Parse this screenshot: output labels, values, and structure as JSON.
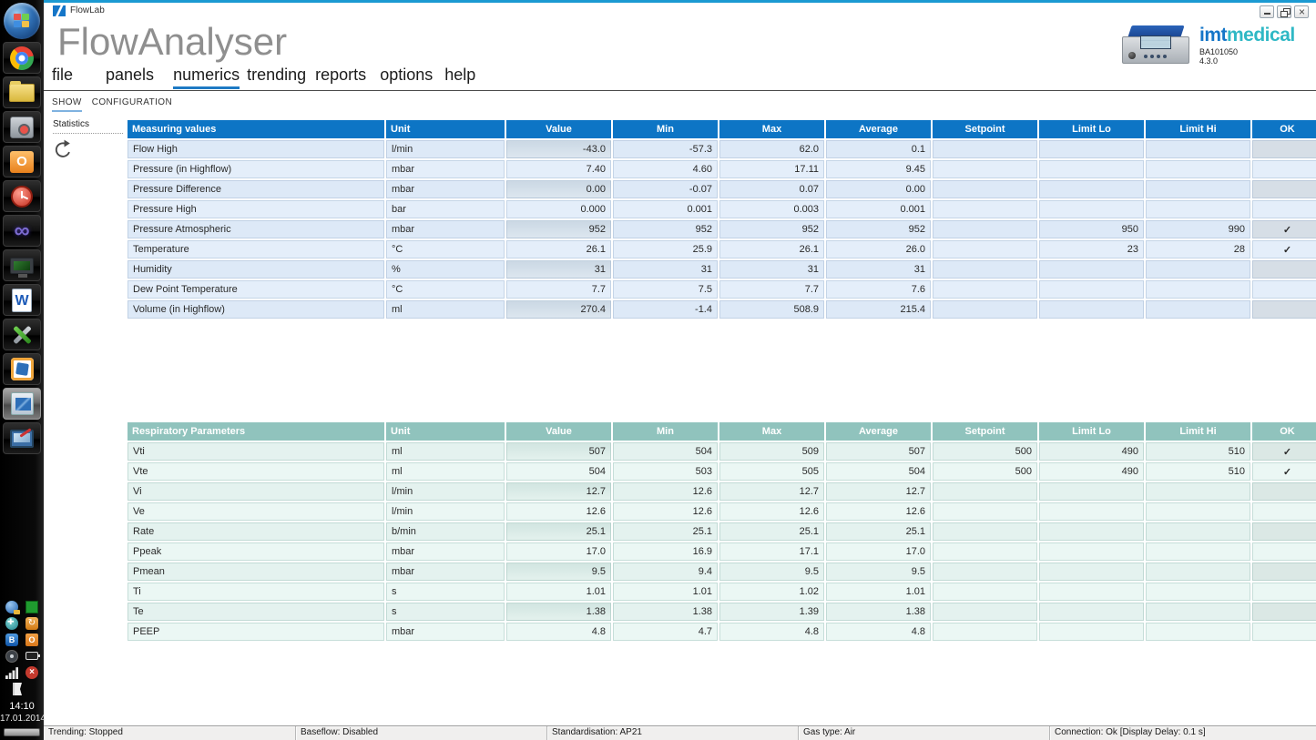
{
  "window": {
    "title": "FlowLab",
    "controls": {
      "minimize": "minimize",
      "restore": "restore",
      "close": "close"
    }
  },
  "header": {
    "app_title": "FlowAnalyser",
    "brand": {
      "imt": "imt",
      "medical": "medical",
      "model": "BA101050",
      "version": "4.3.0"
    }
  },
  "menu": {
    "active": "numerics",
    "items": [
      {
        "label": "file"
      },
      {
        "label": "panels"
      },
      {
        "label": "numerics"
      },
      {
        "label": "trending"
      },
      {
        "label": "reports"
      },
      {
        "label": "options"
      },
      {
        "label": "help"
      }
    ]
  },
  "subtabs": {
    "active": "SHOW",
    "items": [
      {
        "label": "SHOW"
      },
      {
        "label": "CONFIGURATION"
      }
    ]
  },
  "side_panel": {
    "label": "Statistics",
    "icon": "refresh-icon"
  },
  "colors": {
    "table1_header": "#0d75c5",
    "table2_header": "#90c3bd",
    "menu_underline": "#1e7ac4",
    "tab_underline": "#7fb2e0",
    "brand_imt": "#1576c8",
    "brand_medical": "#2fb8c5",
    "top_edge": "#1b9ad2"
  },
  "tables": [
    {
      "title": "Measuring values",
      "columns": [
        "Unit",
        "Value",
        "Min",
        "Max",
        "Average",
        "Setpoint",
        "Limit Lo",
        "Limit Hi",
        "OK"
      ],
      "rows": [
        [
          "Flow High",
          "l/min",
          "-43.0",
          "-57.3",
          "62.0",
          "0.1",
          "",
          "",
          "",
          ""
        ],
        [
          "Pressure (in Highflow)",
          "mbar",
          "7.40",
          "4.60",
          "17.11",
          "9.45",
          "",
          "",
          "",
          ""
        ],
        [
          "Pressure Difference",
          "mbar",
          "0.00",
          "-0.07",
          "0.07",
          "0.00",
          "",
          "",
          "",
          ""
        ],
        [
          "Pressure High",
          "bar",
          "0.000",
          "0.001",
          "0.003",
          "0.001",
          "",
          "",
          "",
          ""
        ],
        [
          "Pressure Atmospheric",
          "mbar",
          "952",
          "952",
          "952",
          "952",
          "",
          "950",
          "990",
          "✓"
        ],
        [
          "Temperature",
          "°C",
          "26.1",
          "25.9",
          "26.1",
          "26.0",
          "",
          "23",
          "28",
          "✓"
        ],
        [
          "Humidity",
          "%",
          "31",
          "31",
          "31",
          "31",
          "",
          "",
          "",
          ""
        ],
        [
          "Dew Point Temperature",
          "°C",
          "7.7",
          "7.5",
          "7.7",
          "7.6",
          "",
          "",
          "",
          ""
        ],
        [
          "Volume (in Highflow)",
          "ml",
          "270.4",
          "-1.4",
          "508.9",
          "215.4",
          "",
          "",
          "",
          ""
        ]
      ]
    },
    {
      "title": "Respiratory Parameters",
      "columns": [
        "Unit",
        "Value",
        "Min",
        "Max",
        "Average",
        "Setpoint",
        "Limit Lo",
        "Limit Hi",
        "OK"
      ],
      "rows": [
        [
          "Vti",
          "ml",
          "507",
          "504",
          "509",
          "507",
          "500",
          "490",
          "510",
          "✓"
        ],
        [
          "Vte",
          "ml",
          "504",
          "503",
          "505",
          "504",
          "500",
          "490",
          "510",
          "✓"
        ],
        [
          "Vi",
          "l/min",
          "12.7",
          "12.6",
          "12.7",
          "12.7",
          "",
          "",
          "",
          ""
        ],
        [
          "Ve",
          "l/min",
          "12.6",
          "12.6",
          "12.6",
          "12.6",
          "",
          "",
          "",
          ""
        ],
        [
          "Rate",
          "b/min",
          "25.1",
          "25.1",
          "25.1",
          "25.1",
          "",
          "",
          "",
          ""
        ],
        [
          "Ppeak",
          "mbar",
          "17.0",
          "16.9",
          "17.1",
          "17.0",
          "",
          "",
          "",
          ""
        ],
        [
          "Pmean",
          "mbar",
          "9.5",
          "9.4",
          "9.5",
          "9.5",
          "",
          "",
          "",
          ""
        ],
        [
          "Ti",
          "s",
          "1.01",
          "1.01",
          "1.02",
          "1.01",
          "",
          "",
          "",
          ""
        ],
        [
          "Te",
          "s",
          "1.38",
          "1.38",
          "1.39",
          "1.38",
          "",
          "",
          "",
          ""
        ],
        [
          "PEEP",
          "mbar",
          "4.8",
          "4.7",
          "4.8",
          "4.8",
          "",
          "",
          "",
          ""
        ]
      ]
    }
  ],
  "status_bar": {
    "sections": [
      "Trending: Stopped",
      "Baseflow: Disabled",
      "Standardisation: AP21",
      "Gas type: Air",
      "Connection: Ok [Display Delay: 0.1 s]"
    ]
  },
  "taskbar": {
    "icons": [
      "windows-start",
      "chrome",
      "file-explorer",
      "safe",
      "outlook",
      "alarm-clock",
      "visual-studio",
      "remote-desktop",
      "word",
      "tools",
      "vmware",
      "flowlab",
      "paint"
    ],
    "active_icon": "flowlab",
    "tray_icons": [
      "network-globe",
      "vm-status",
      "network",
      "sync",
      "bluetooth",
      "office",
      "volume",
      "battery",
      "signal-strength",
      "audio-muted",
      "flag"
    ],
    "clock": "14:10",
    "date": "17.01.2014",
    "office_glyph": "O",
    "sync_glyph": "↻",
    "bluetooth_glyph": "B",
    "mute_glyph": "×",
    "outlook_glyph": "O",
    "word_glyph": "W",
    "infinity_glyph": "∞"
  }
}
